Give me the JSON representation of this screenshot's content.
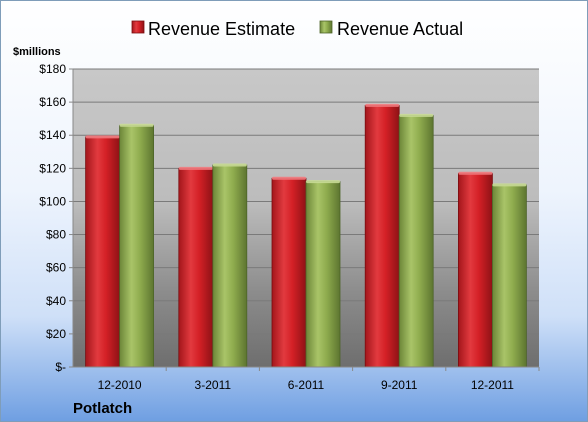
{
  "chart_data": {
    "type": "bar",
    "company": "Potlatch",
    "unit_label": "$millions",
    "categories": [
      "12-2010",
      "3-2011",
      "6-2011",
      "9-2011",
      "12-2011"
    ],
    "series": [
      {
        "name": "Revenue Estimate",
        "color": "#d42026",
        "values": [
          139,
          120,
          114,
          158,
          117
        ]
      },
      {
        "name": "Revenue Actual",
        "color": "#8fac4e",
        "values": [
          146,
          122,
          112,
          152,
          110
        ]
      }
    ],
    "ylim": [
      0,
      180
    ],
    "y_ticks": [
      {
        "value": 0,
        "label": "$-"
      },
      {
        "value": 20,
        "label": "$20"
      },
      {
        "value": 40,
        "label": "$40"
      },
      {
        "value": 60,
        "label": "$60"
      },
      {
        "value": 80,
        "label": "$80"
      },
      {
        "value": 100,
        "label": "$100"
      },
      {
        "value": 120,
        "label": "$120"
      },
      {
        "value": 140,
        "label": "$140"
      },
      {
        "value": 160,
        "label": "$160"
      },
      {
        "value": 180,
        "label": "$180"
      }
    ],
    "grid": true,
    "legend_position": "top-center"
  }
}
